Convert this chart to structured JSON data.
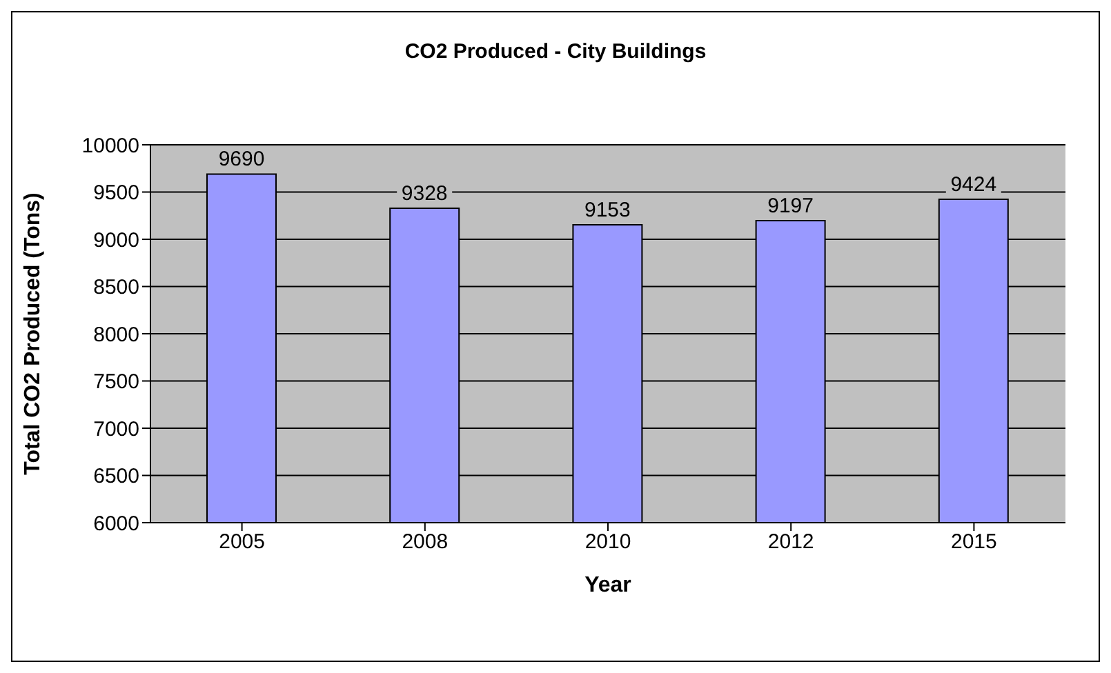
{
  "chart_data": {
    "type": "bar",
    "title": "CO2 Produced - City Buildings",
    "xlabel": "Year",
    "ylabel": "Total CO2 Produced (Tons)",
    "categories": [
      "2005",
      "2008",
      "2010",
      "2012",
      "2015"
    ],
    "values": [
      9690,
      9328,
      9153,
      9197,
      9424
    ],
    "color": "#9999ff",
    "ylim": [
      6000,
      10000
    ],
    "yticks": [
      6000,
      6500,
      7000,
      7500,
      8000,
      8500,
      9000,
      9500,
      10000
    ],
    "grid": "y",
    "data_labels": true,
    "legend": false
  }
}
